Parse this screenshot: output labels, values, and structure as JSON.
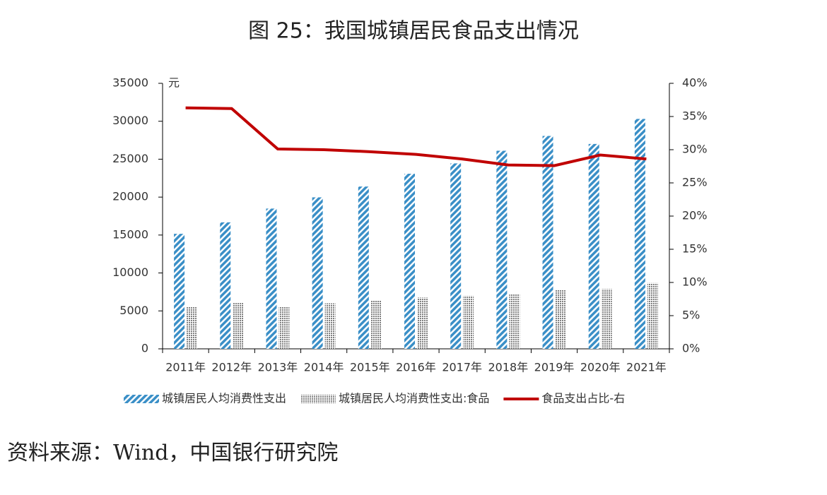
{
  "chart_data": {
    "type": "bar",
    "title": "图 25：我国城镇居民食品支出情况",
    "y_unit": "元",
    "source": "资料来源：Wind，中国银行研究院",
    "categories": [
      "2011年",
      "2012年",
      "2013年",
      "2014年",
      "2015年",
      "2016年",
      "2017年",
      "2018年",
      "2019年",
      "2020年",
      "2021年"
    ],
    "series": [
      {
        "name": "城镇居民人均消费性支出",
        "color": "#3a8fc7",
        "pattern": "stripes",
        "values": [
          15161,
          16674,
          18488,
          19968,
          21392,
          23079,
          24445,
          26112,
          28063,
          27007,
          30307
        ]
      },
      {
        "name": "城镇居民人均消费性支出:食品",
        "color": "#808080",
        "pattern": "dots",
        "values": [
          5506,
          6041,
          5571,
          6000,
          6360,
          6762,
          7001,
          7239,
          7733,
          7881,
          8678
        ]
      },
      {
        "name": "食品支出占比-右",
        "color": "#c00000",
        "type": "line",
        "axis": "y2",
        "values": [
          36.3,
          36.2,
          30.1,
          30.0,
          29.7,
          29.3,
          28.6,
          27.7,
          27.6,
          29.2,
          28.6
        ]
      }
    ],
    "ylim": [
      0,
      35000
    ],
    "yticks": [
      0,
      5000,
      10000,
      15000,
      20000,
      25000,
      30000,
      35000
    ],
    "y2lim": [
      0,
      40
    ],
    "y2ticks": [
      {
        "value": 0,
        "label": "0%"
      },
      {
        "value": 5,
        "label": "5%"
      },
      {
        "value": 10,
        "label": "10%"
      },
      {
        "value": 15,
        "label": "15%"
      },
      {
        "value": 20,
        "label": "20%"
      },
      {
        "value": 25,
        "label": "25%"
      },
      {
        "value": 30,
        "label": "30%"
      },
      {
        "value": 35,
        "label": "35%"
      },
      {
        "value": 40,
        "label": "40%"
      }
    ],
    "grid": false
  }
}
